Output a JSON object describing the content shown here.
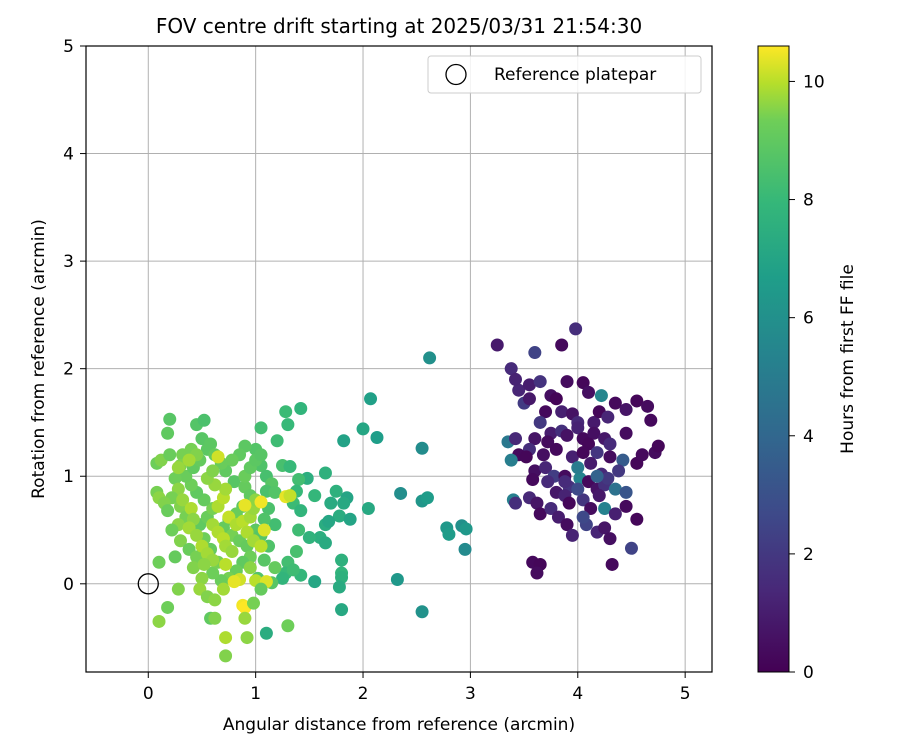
{
  "chart_data": {
    "type": "scatter",
    "title": "FOV centre drift starting at 2025/03/31 21:54:30",
    "xlabel": "Angular distance from reference (arcmin)",
    "ylabel": "Rotation from reference (arcmin)",
    "xlim": [
      -0.58,
      5.25
    ],
    "ylim": [
      -0.82,
      5.0
    ],
    "x_ticks": [
      "0",
      "1",
      "2",
      "3",
      "4",
      "5"
    ],
    "y_ticks": [
      "0",
      "1",
      "2",
      "3",
      "4",
      "5"
    ],
    "grid": true,
    "legend": {
      "placement": "top-right",
      "entries": [
        "Reference platepar"
      ]
    },
    "colorbar": {
      "label": "Hours from first FF file",
      "range": [
        0,
        10.6
      ],
      "ticks": [
        "0",
        "2",
        "4",
        "6",
        "8",
        "10"
      ],
      "colormap": "viridis"
    },
    "reference_point": {
      "x": 0,
      "y": 0
    },
    "points": [
      [
        3.25,
        2.22,
        0.9
      ],
      [
        3.6,
        2.15,
        2.4
      ],
      [
        3.85,
        2.22,
        0.3
      ],
      [
        3.98,
        2.37,
        1.6
      ],
      [
        3.38,
        2.0,
        1.5
      ],
      [
        3.45,
        1.8,
        1.3
      ],
      [
        3.55,
        1.85,
        1.0
      ],
      [
        3.65,
        1.88,
        1.8
      ],
      [
        3.5,
        1.68,
        2.1
      ],
      [
        3.55,
        1.72,
        0.8
      ],
      [
        3.42,
        1.9,
        1.2
      ],
      [
        3.75,
        1.75,
        0.5
      ],
      [
        3.9,
        1.88,
        0.4
      ],
      [
        4.05,
        1.87,
        0.2
      ],
      [
        4.1,
        1.78,
        0.5
      ],
      [
        4.35,
        1.68,
        0.3
      ],
      [
        4.55,
        1.7,
        0.2
      ],
      [
        4.65,
        1.65,
        0.4
      ],
      [
        4.68,
        1.52,
        0.3
      ],
      [
        4.45,
        1.62,
        0.7
      ],
      [
        3.8,
        1.72,
        0.1
      ],
      [
        3.85,
        1.6,
        1.1
      ],
      [
        3.95,
        1.58,
        0.6
      ],
      [
        4.0,
        1.5,
        1.4
      ],
      [
        4.15,
        1.5,
        0.9
      ],
      [
        4.2,
        1.6,
        0.2
      ],
      [
        4.28,
        1.55,
        1.3
      ],
      [
        3.7,
        1.6,
        0.3
      ],
      [
        3.65,
        1.5,
        2.0
      ],
      [
        3.75,
        1.4,
        1.0
      ],
      [
        3.72,
        1.32,
        0.4
      ],
      [
        3.85,
        1.42,
        1.7
      ],
      [
        3.9,
        1.38,
        0.6
      ],
      [
        4.0,
        1.45,
        1.2
      ],
      [
        4.05,
        1.35,
        0.3
      ],
      [
        4.15,
        1.4,
        0.5
      ],
      [
        4.25,
        1.35,
        0.8
      ],
      [
        4.1,
        1.3,
        0.2
      ],
      [
        4.18,
        1.22,
        1.9
      ],
      [
        4.3,
        1.3,
        1.5
      ],
      [
        4.45,
        1.4,
        0.4
      ],
      [
        3.6,
        1.35,
        0.7
      ],
      [
        3.55,
        1.25,
        1.6
      ],
      [
        3.45,
        1.2,
        0.3
      ],
      [
        3.35,
        1.32,
        4.8
      ],
      [
        3.38,
        1.15,
        5.1
      ],
      [
        3.42,
        1.35,
        1.4
      ],
      [
        3.52,
        1.18,
        0.2
      ],
      [
        3.68,
        1.2,
        0.5
      ],
      [
        3.8,
        1.25,
        0.3
      ],
      [
        3.95,
        1.18,
        1.1
      ],
      [
        4.05,
        1.22,
        0.2
      ],
      [
        4.12,
        1.12,
        0.9
      ],
      [
        4.22,
        1.02,
        1.4
      ],
      [
        4.3,
        1.18,
        0.4
      ],
      [
        4.42,
        1.15,
        3.5
      ],
      [
        4.55,
        1.12,
        0.2
      ],
      [
        4.6,
        1.2,
        0.3
      ],
      [
        4.72,
        1.22,
        0.4
      ],
      [
        4.75,
        1.28,
        0.2
      ],
      [
        3.6,
        1.05,
        0.5
      ],
      [
        3.7,
        1.08,
        1.3
      ],
      [
        3.78,
        1.0,
        2.2
      ],
      [
        3.88,
        1.0,
        0.4
      ],
      [
        3.92,
        0.9,
        1.8
      ],
      [
        4.02,
        0.98,
        5.4
      ],
      [
        4.1,
        0.95,
        0.3
      ],
      [
        4.18,
        0.88,
        0.6
      ],
      [
        4.25,
        0.92,
        1.7
      ],
      [
        4.35,
        0.88,
        4.5
      ],
      [
        4.45,
        0.85,
        3.2
      ],
      [
        4.28,
        0.98,
        2.0
      ],
      [
        3.58,
        0.97,
        0.3
      ],
      [
        3.72,
        0.95,
        1.5
      ],
      [
        3.8,
        0.85,
        0.8
      ],
      [
        3.88,
        0.82,
        1.2
      ],
      [
        3.92,
        0.75,
        0.2
      ],
      [
        4.05,
        0.78,
        1.9
      ],
      [
        4.12,
        0.7,
        0.4
      ],
      [
        4.2,
        0.82,
        0.8
      ],
      [
        4.25,
        0.7,
        5.3
      ],
      [
        4.35,
        0.65,
        1.1
      ],
      [
        4.45,
        0.72,
        0.3
      ],
      [
        4.55,
        0.6,
        0.2
      ],
      [
        3.4,
        0.78,
        5.2
      ],
      [
        3.42,
        0.75,
        1.6
      ],
      [
        3.55,
        0.8,
        1.4
      ],
      [
        3.62,
        0.75,
        0.7
      ],
      [
        3.65,
        0.65,
        0.3
      ],
      [
        3.75,
        0.7,
        1.5
      ],
      [
        3.82,
        0.62,
        1.0
      ],
      [
        3.9,
        0.55,
        0.4
      ],
      [
        3.95,
        0.45,
        1.2
      ],
      [
        4.08,
        0.55,
        2.4
      ],
      [
        4.18,
        0.48,
        1.3
      ],
      [
        4.25,
        0.52,
        0.7
      ],
      [
        4.3,
        0.42,
        0.5
      ],
      [
        4.5,
        0.33,
        2.4
      ],
      [
        4.05,
        0.62,
        2.6
      ],
      [
        3.58,
        0.2,
        0.3
      ],
      [
        3.65,
        0.18,
        0.2
      ],
      [
        3.62,
        0.1,
        0.4
      ],
      [
        4.32,
        0.18,
        0.3
      ],
      [
        4.22,
        1.75,
        5.5
      ],
      [
        4.0,
        1.08,
        5.0
      ],
      [
        4.18,
        1.0,
        3.8
      ],
      [
        4.38,
        1.05,
        2.0
      ],
      [
        4.0,
        0.88,
        2.7
      ],
      [
        3.88,
        0.95,
        1.5
      ],
      [
        2.62,
        2.1,
        6.0
      ],
      [
        2.55,
        1.26,
        5.8
      ],
      [
        2.55,
        0.77,
        6.3
      ],
      [
        2.6,
        0.8,
        6.6
      ],
      [
        2.35,
        0.84,
        5.9
      ],
      [
        2.78,
        0.52,
        6.4
      ],
      [
        2.8,
        0.46,
        6.6
      ],
      [
        2.92,
        0.54,
        6.0
      ],
      [
        2.96,
        0.51,
        6.4
      ],
      [
        2.95,
        0.32,
        5.7
      ],
      [
        2.32,
        0.04,
        6.4
      ],
      [
        2.55,
        -0.26,
        6.1
      ],
      [
        2.07,
        1.72,
        6.8
      ],
      [
        2.13,
        1.36,
        6.7
      ],
      [
        2.05,
        0.7,
        7.2
      ],
      [
        2.0,
        1.44,
        7.1
      ],
      [
        1.82,
        1.33,
        6.9
      ],
      [
        1.85,
        0.8,
        7.0
      ],
      [
        1.82,
        0.75,
        7.2
      ],
      [
        1.75,
        0.86,
        7.6
      ],
      [
        1.78,
        0.63,
        7.4
      ],
      [
        1.88,
        0.6,
        7.0
      ],
      [
        1.7,
        0.75,
        7.3
      ],
      [
        1.65,
        0.55,
        7.4
      ],
      [
        1.68,
        0.58,
        7.1
      ],
      [
        1.65,
        1.03,
        7.6
      ],
      [
        1.55,
        0.82,
        7.9
      ],
      [
        1.6,
        0.43,
        7.5
      ],
      [
        1.65,
        0.38,
        7.3
      ],
      [
        1.8,
        0.22,
        7.6
      ],
      [
        1.8,
        0.1,
        7.8
      ],
      [
        1.8,
        0.06,
        7.6
      ],
      [
        1.78,
        -0.03,
        7.3
      ],
      [
        1.8,
        -0.24,
        7.2
      ],
      [
        1.55,
        0.02,
        7.1
      ],
      [
        1.5,
        0.43,
        7.7
      ],
      [
        1.48,
        0.98,
        7.5
      ],
      [
        1.42,
        1.63,
        7.8
      ],
      [
        1.28,
        1.6,
        8.1
      ],
      [
        1.3,
        1.48,
        8.0
      ],
      [
        1.2,
        1.33,
        8.2
      ],
      [
        1.25,
        1.1,
        8.4
      ],
      [
        1.32,
        1.09,
        8.0
      ],
      [
        1.4,
        0.97,
        8.3
      ],
      [
        1.38,
        0.86,
        8.0
      ],
      [
        1.35,
        0.75,
        8.1
      ],
      [
        1.42,
        0.68,
        7.8
      ],
      [
        1.4,
        0.5,
        8.2
      ],
      [
        1.38,
        0.3,
        8.4
      ],
      [
        1.42,
        0.08,
        7.9
      ],
      [
        1.3,
        0.2,
        8.3
      ],
      [
        1.28,
        0.1,
        8.0
      ],
      [
        1.25,
        0.05,
        7.8
      ],
      [
        1.35,
        0.13,
        8.2
      ],
      [
        1.1,
        -0.46,
        7.4
      ],
      [
        1.18,
        0.55,
        8.3
      ],
      [
        1.12,
        0.7,
        8.5
      ],
      [
        1.05,
        1.45,
        8.3
      ],
      [
        1.0,
        1.25,
        8.7
      ],
      [
        1.05,
        1.1,
        8.6
      ],
      [
        1.1,
        1.0,
        8.4
      ],
      [
        1.15,
        0.93,
        8.8
      ],
      [
        1.1,
        0.86,
        8.5
      ],
      [
        1.18,
        0.85,
        8.7
      ],
      [
        1.08,
        0.6,
        8.6
      ],
      [
        1.0,
        0.5,
        8.9
      ],
      [
        1.05,
        0.45,
        8.7
      ],
      [
        1.12,
        0.35,
        8.6
      ],
      [
        1.08,
        0.22,
        8.8
      ],
      [
        1.02,
        0.05,
        8.7
      ],
      [
        1.15,
        0.01,
        8.8
      ],
      [
        0.9,
        1.28,
        8.9
      ],
      [
        0.85,
        1.2,
        9.0
      ],
      [
        0.78,
        1.15,
        9.2
      ],
      [
        0.72,
        1.05,
        9.0
      ],
      [
        0.8,
        0.95,
        8.8
      ],
      [
        0.9,
        0.9,
        9.1
      ],
      [
        0.95,
        0.82,
        9.0
      ],
      [
        0.88,
        0.72,
        8.9
      ],
      [
        0.82,
        0.65,
        9.2
      ],
      [
        0.75,
        0.6,
        9.3
      ],
      [
        0.7,
        0.52,
        9.1
      ],
      [
        0.78,
        0.45,
        9.4
      ],
      [
        0.85,
        0.4,
        9.2
      ],
      [
        0.92,
        0.35,
        9.1
      ],
      [
        0.95,
        0.25,
        9.3
      ],
      [
        0.88,
        0.2,
        9.0
      ],
      [
        0.82,
        0.12,
        9.2
      ],
      [
        0.75,
        0.05,
        9.4
      ],
      [
        0.68,
        0.03,
        9.2
      ],
      [
        0.6,
        0.1,
        9.3
      ],
      [
        0.65,
        0.2,
        9.4
      ],
      [
        0.58,
        0.32,
        9.1
      ],
      [
        0.52,
        0.42,
        9.3
      ],
      [
        0.48,
        0.55,
        9.0
      ],
      [
        0.55,
        0.62,
        9.2
      ],
      [
        0.6,
        0.7,
        9.4
      ],
      [
        0.52,
        0.78,
        9.1
      ],
      [
        0.45,
        0.85,
        9.0
      ],
      [
        0.4,
        0.92,
        9.3
      ],
      [
        0.35,
        1.0,
        9.2
      ],
      [
        0.42,
        1.08,
        9.0
      ],
      [
        0.48,
        1.15,
        9.1
      ],
      [
        0.55,
        1.25,
        8.9
      ],
      [
        0.5,
        1.35,
        8.8
      ],
      [
        0.45,
        1.48,
        8.7
      ],
      [
        0.52,
        1.52,
        8.5
      ],
      [
        0.58,
        1.3,
        8.9
      ],
      [
        0.62,
        1.2,
        9.1
      ],
      [
        0.68,
        1.12,
        9.2
      ],
      [
        0.32,
        1.2,
        9.4
      ],
      [
        0.3,
        1.1,
        9.5
      ],
      [
        0.25,
        0.98,
        9.3
      ],
      [
        0.28,
        0.88,
        9.6
      ],
      [
        0.22,
        0.8,
        9.4
      ],
      [
        0.3,
        0.72,
        9.5
      ],
      [
        0.35,
        0.62,
        9.4
      ],
      [
        0.28,
        0.55,
        9.6
      ],
      [
        0.22,
        0.5,
        9.3
      ],
      [
        0.3,
        0.4,
        9.5
      ],
      [
        0.38,
        0.32,
        9.2
      ],
      [
        0.45,
        0.25,
        9.4
      ],
      [
        0.42,
        0.15,
        9.5
      ],
      [
        0.5,
        0.05,
        9.6
      ],
      [
        0.48,
        -0.05,
        9.7
      ],
      [
        0.55,
        -0.12,
        9.5
      ],
      [
        0.62,
        -0.15,
        9.6
      ],
      [
        0.7,
        -0.05,
        9.8
      ],
      [
        0.58,
        -0.32,
        9.0
      ],
      [
        0.28,
        -0.05,
        9.5
      ],
      [
        0.18,
        -0.22,
        9.3
      ],
      [
        0.1,
        -0.35,
        9.6
      ],
      [
        0.1,
        0.2,
        9.3
      ],
      [
        0.08,
        0.85,
        9.4
      ],
      [
        0.1,
        0.8,
        9.6
      ],
      [
        0.15,
        0.75,
        9.5
      ],
      [
        0.18,
        0.68,
        9.2
      ],
      [
        0.08,
        1.12,
        9.3
      ],
      [
        0.12,
        1.15,
        9.5
      ],
      [
        0.18,
        1.4,
        9.0
      ],
      [
        0.2,
        1.53,
        8.8
      ],
      [
        0.28,
        1.08,
        9.7
      ],
      [
        0.4,
        1.25,
        9.4
      ],
      [
        0.45,
        1.2,
        9.5
      ],
      [
        0.38,
        1.15,
        9.8
      ],
      [
        0.32,
        0.78,
        9.7
      ],
      [
        0.4,
        0.7,
        9.9
      ],
      [
        0.42,
        0.6,
        9.6
      ],
      [
        0.38,
        0.52,
        9.8
      ],
      [
        0.45,
        0.45,
        9.7
      ],
      [
        0.5,
        0.35,
        9.9
      ],
      [
        0.55,
        0.28,
        9.8
      ],
      [
        0.6,
        0.22,
        9.7
      ],
      [
        0.52,
        0.18,
        9.6
      ],
      [
        0.6,
        0.55,
        9.8
      ],
      [
        0.65,
        0.48,
        9.9
      ],
      [
        0.7,
        0.42,
        10.0
      ],
      [
        0.72,
        0.35,
        9.8
      ],
      [
        0.78,
        0.3,
        9.7
      ],
      [
        0.65,
        0.72,
        9.9
      ],
      [
        0.7,
        0.8,
        10.0
      ],
      [
        0.72,
        0.88,
        9.8
      ],
      [
        0.62,
        0.92,
        9.7
      ],
      [
        0.55,
        0.98,
        9.6
      ],
      [
        0.6,
        1.05,
        9.5
      ],
      [
        0.75,
        0.62,
        10.1
      ],
      [
        0.82,
        0.55,
        9.9
      ],
      [
        0.88,
        0.58,
        10.0
      ],
      [
        0.95,
        0.62,
        9.8
      ],
      [
        0.98,
        0.7,
        9.7
      ],
      [
        1.0,
        0.78,
        9.6
      ],
      [
        0.92,
        0.48,
        9.9
      ],
      [
        0.98,
        0.4,
        9.8
      ],
      [
        1.05,
        0.35,
        10.0
      ],
      [
        0.9,
        1.0,
        9.2
      ],
      [
        0.95,
        1.08,
        9.0
      ],
      [
        1.0,
        1.15,
        8.9
      ],
      [
        1.05,
        1.2,
        8.8
      ],
      [
        0.65,
        1.18,
        10.2
      ],
      [
        0.9,
        0.73,
        10.4
      ],
      [
        1.05,
        0.76,
        10.5
      ],
      [
        1.08,
        0.5,
        10.3
      ],
      [
        1.28,
        0.81,
        10.4
      ],
      [
        1.32,
        0.82,
        10.1
      ],
      [
        0.88,
        -0.2,
        10.5
      ],
      [
        0.9,
        -0.22,
        10.6
      ],
      [
        0.72,
        -0.5,
        9.9
      ],
      [
        0.72,
        -0.67,
        9.5
      ],
      [
        0.92,
        -0.5,
        9.6
      ],
      [
        0.98,
        -0.18,
        9.4
      ],
      [
        0.9,
        -0.32,
        9.7
      ],
      [
        1.3,
        -0.39,
        9.3
      ],
      [
        0.62,
        -0.32,
        9.5
      ],
      [
        0.25,
        0.25,
        9.1
      ],
      [
        0.2,
        1.2,
        9.2
      ],
      [
        1.0,
        0.03,
        10.0
      ],
      [
        1.1,
        0.02,
        10.3
      ],
      [
        1.05,
        -0.05,
        9.1
      ],
      [
        0.85,
        0.04,
        10.2
      ],
      [
        0.95,
        0.15,
        9.6
      ],
      [
        1.18,
        0.15,
        9.1
      ],
      [
        0.72,
        0.18,
        10.0
      ],
      [
        0.8,
        0.02,
        10.4
      ]
    ]
  }
}
